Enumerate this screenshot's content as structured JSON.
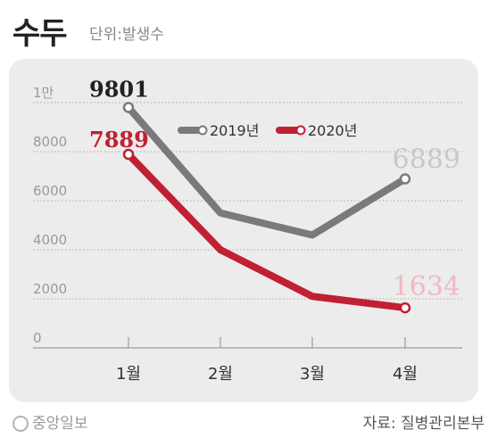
{
  "header": {
    "title": "수두",
    "unit": "단위:발생수"
  },
  "footer": {
    "brand": "중앙일보",
    "source": "자료: 질병관리본부"
  },
  "colors": {
    "series_2019": "#7a7a7a",
    "series_2020": "#c11f32",
    "label_2019_last": "#c8c8c8",
    "label_2020_last": "#f0b9c0",
    "panel": "#ececec"
  },
  "chart_data": {
    "type": "line",
    "x": [
      "1월",
      "2월",
      "3월",
      "4월"
    ],
    "yticks": [
      "1만",
      "8000",
      "6000",
      "4000",
      "2000",
      "0"
    ],
    "ylim": [
      0,
      10000
    ],
    "grid": true,
    "legend_position": "top-center",
    "series": [
      {
        "name": "2019년",
        "values": [
          9801,
          5500,
          4600,
          6889
        ],
        "labels": [
          "9801",
          "",
          "",
          "6889"
        ]
      },
      {
        "name": "2020년",
        "values": [
          7889,
          4000,
          2100,
          1634
        ],
        "labels": [
          "7889",
          "",
          "",
          "1634"
        ]
      }
    ]
  }
}
